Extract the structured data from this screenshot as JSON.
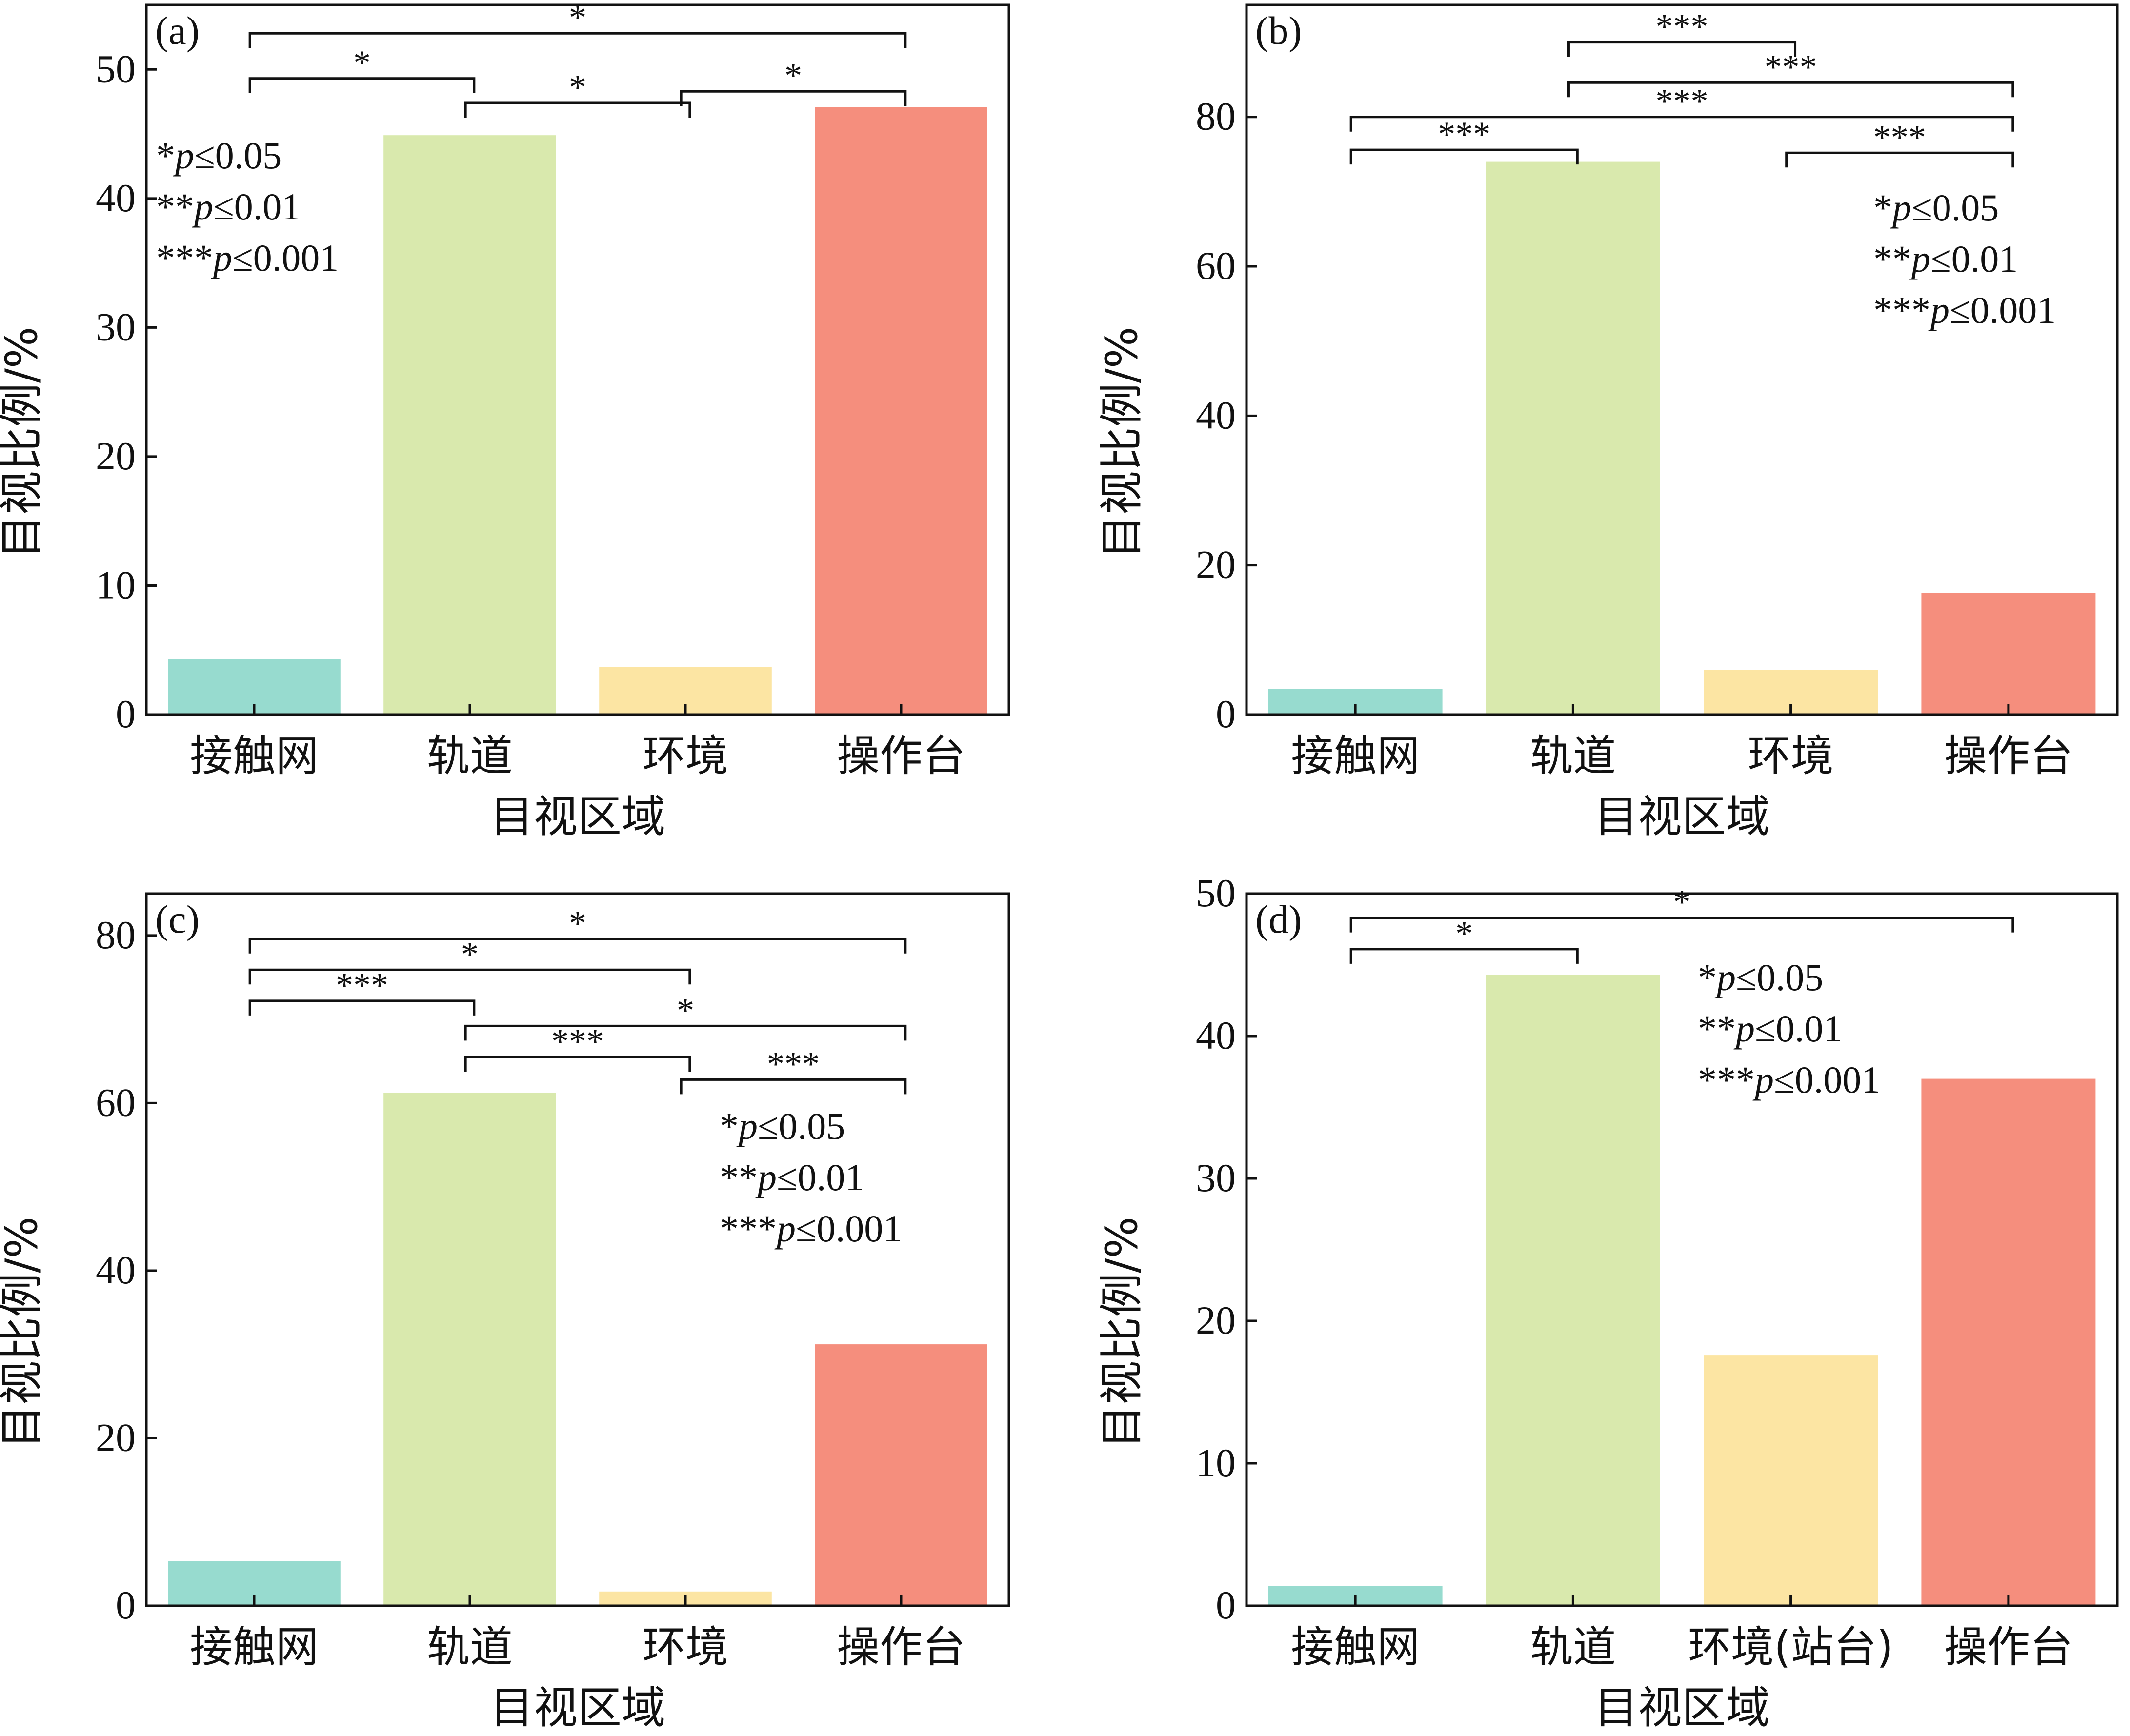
{
  "chart_data": [
    {
      "type": "bar",
      "panel_label": "(a)",
      "categories": [
        "接触网",
        "轨道",
        "环境",
        "操作台"
      ],
      "values": [
        4.3,
        44.9,
        3.7,
        47.1
      ],
      "colors": [
        "#97dbcf",
        "#d9e9ad",
        "#fce5a3",
        "#f58e7d"
      ],
      "xlabel": "目视区域",
      "ylabel": "目视比例/%",
      "ylim": [
        0,
        55
      ],
      "yticks": [
        0,
        10,
        20,
        30,
        40,
        50
      ],
      "legend_position": "top-left",
      "legend": [
        "*",
        "p",
        "≤0.05",
        "**",
        "p",
        "≤0.01",
        "***",
        "p",
        "≤0.001"
      ],
      "brackets": [
        {
          "from": 0,
          "to": 3,
          "level": 52.8,
          "label": "*"
        },
        {
          "from": 0,
          "to": 1,
          "level": 49.3,
          "label": "*"
        },
        {
          "from": 1,
          "to": 2,
          "level": 47.4,
          "label": "*"
        },
        {
          "from": 2,
          "to": 3,
          "level": 48.3,
          "label": "*"
        }
      ]
    },
    {
      "type": "bar",
      "panel_label": "(b)",
      "categories": [
        "接触网",
        "轨道",
        "环境",
        "操作台"
      ],
      "values": [
        3.4,
        74.0,
        6.0,
        16.3
      ],
      "colors": [
        "#97dbcf",
        "#d9e9ad",
        "#fce5a3",
        "#f58e7d"
      ],
      "xlabel": "目视区域",
      "ylabel": "目视比例/%",
      "ylim": [
        0,
        95
      ],
      "yticks": [
        0,
        20,
        40,
        60,
        80
      ],
      "legend_position": "top-right",
      "legend": [
        "*",
        "p",
        "≤0.05",
        "**",
        "p",
        "≤0.01",
        "***",
        "p",
        "≤0.001"
      ],
      "brackets": [
        {
          "from": 1,
          "to": 2,
          "level": 90.0,
          "label": "***"
        },
        {
          "from": 1,
          "to": 3,
          "level": 84.6,
          "label": "***"
        },
        {
          "from": 0,
          "to": 3,
          "level": 80.0,
          "label": "***"
        },
        {
          "from": 0,
          "to": 1,
          "level": 75.6,
          "label": "***"
        },
        {
          "from": 2,
          "to": 3,
          "level": 75.2,
          "label": "***"
        }
      ]
    },
    {
      "type": "bar",
      "panel_label": "(c)",
      "categories": [
        "接触网",
        "轨道",
        "环境",
        "操作台"
      ],
      "values": [
        5.3,
        61.2,
        1.7,
        31.2
      ],
      "colors": [
        "#97dbcf",
        "#d9e9ad",
        "#fce5a3",
        "#f58e7d"
      ],
      "xlabel": "目视区域",
      "ylabel": "目视比例/%",
      "ylim": [
        0,
        85
      ],
      "yticks": [
        0,
        20,
        40,
        60,
        80
      ],
      "legend_position": "top-right",
      "legend": [
        "*",
        "p",
        "≤0.05",
        "**",
        "p",
        "≤0.01",
        "***",
        "p",
        "≤0.001"
      ],
      "brackets": [
        {
          "from": 0,
          "to": 3,
          "level": 79.6,
          "label": "*"
        },
        {
          "from": 0,
          "to": 2,
          "level": 75.9,
          "label": "*"
        },
        {
          "from": 0,
          "to": 1,
          "level": 72.2,
          "label": "***"
        },
        {
          "from": 1,
          "to": 3,
          "level": 69.2,
          "label": "*"
        },
        {
          "from": 1,
          "to": 2,
          "level": 65.5,
          "label": "***"
        },
        {
          "from": 2,
          "to": 3,
          "level": 62.8,
          "label": "***"
        }
      ]
    },
    {
      "type": "bar",
      "panel_label": "(d)",
      "categories": [
        "接触网",
        "轨道",
        "环境(站台)",
        "操作台"
      ],
      "values": [
        1.4,
        44.3,
        17.6,
        37.0
      ],
      "colors": [
        "#97dbcf",
        "#d9e9ad",
        "#fce5a3",
        "#f58e7d"
      ],
      "xlabel": "目视区域",
      "ylabel": "目视比例/%",
      "ylim": [
        0,
        50
      ],
      "yticks": [
        0,
        10,
        20,
        30,
        40,
        50
      ],
      "legend_position": "top-center",
      "legend": [
        "*",
        "p",
        "≤0.05",
        "**",
        "p",
        "≤0.01",
        "***",
        "p",
        "≤0.001"
      ],
      "brackets": [
        {
          "from": 0,
          "to": 3,
          "level": 48.3,
          "label": "*"
        },
        {
          "from": 0,
          "to": 1,
          "level": 46.1,
          "label": "*"
        }
      ]
    }
  ]
}
